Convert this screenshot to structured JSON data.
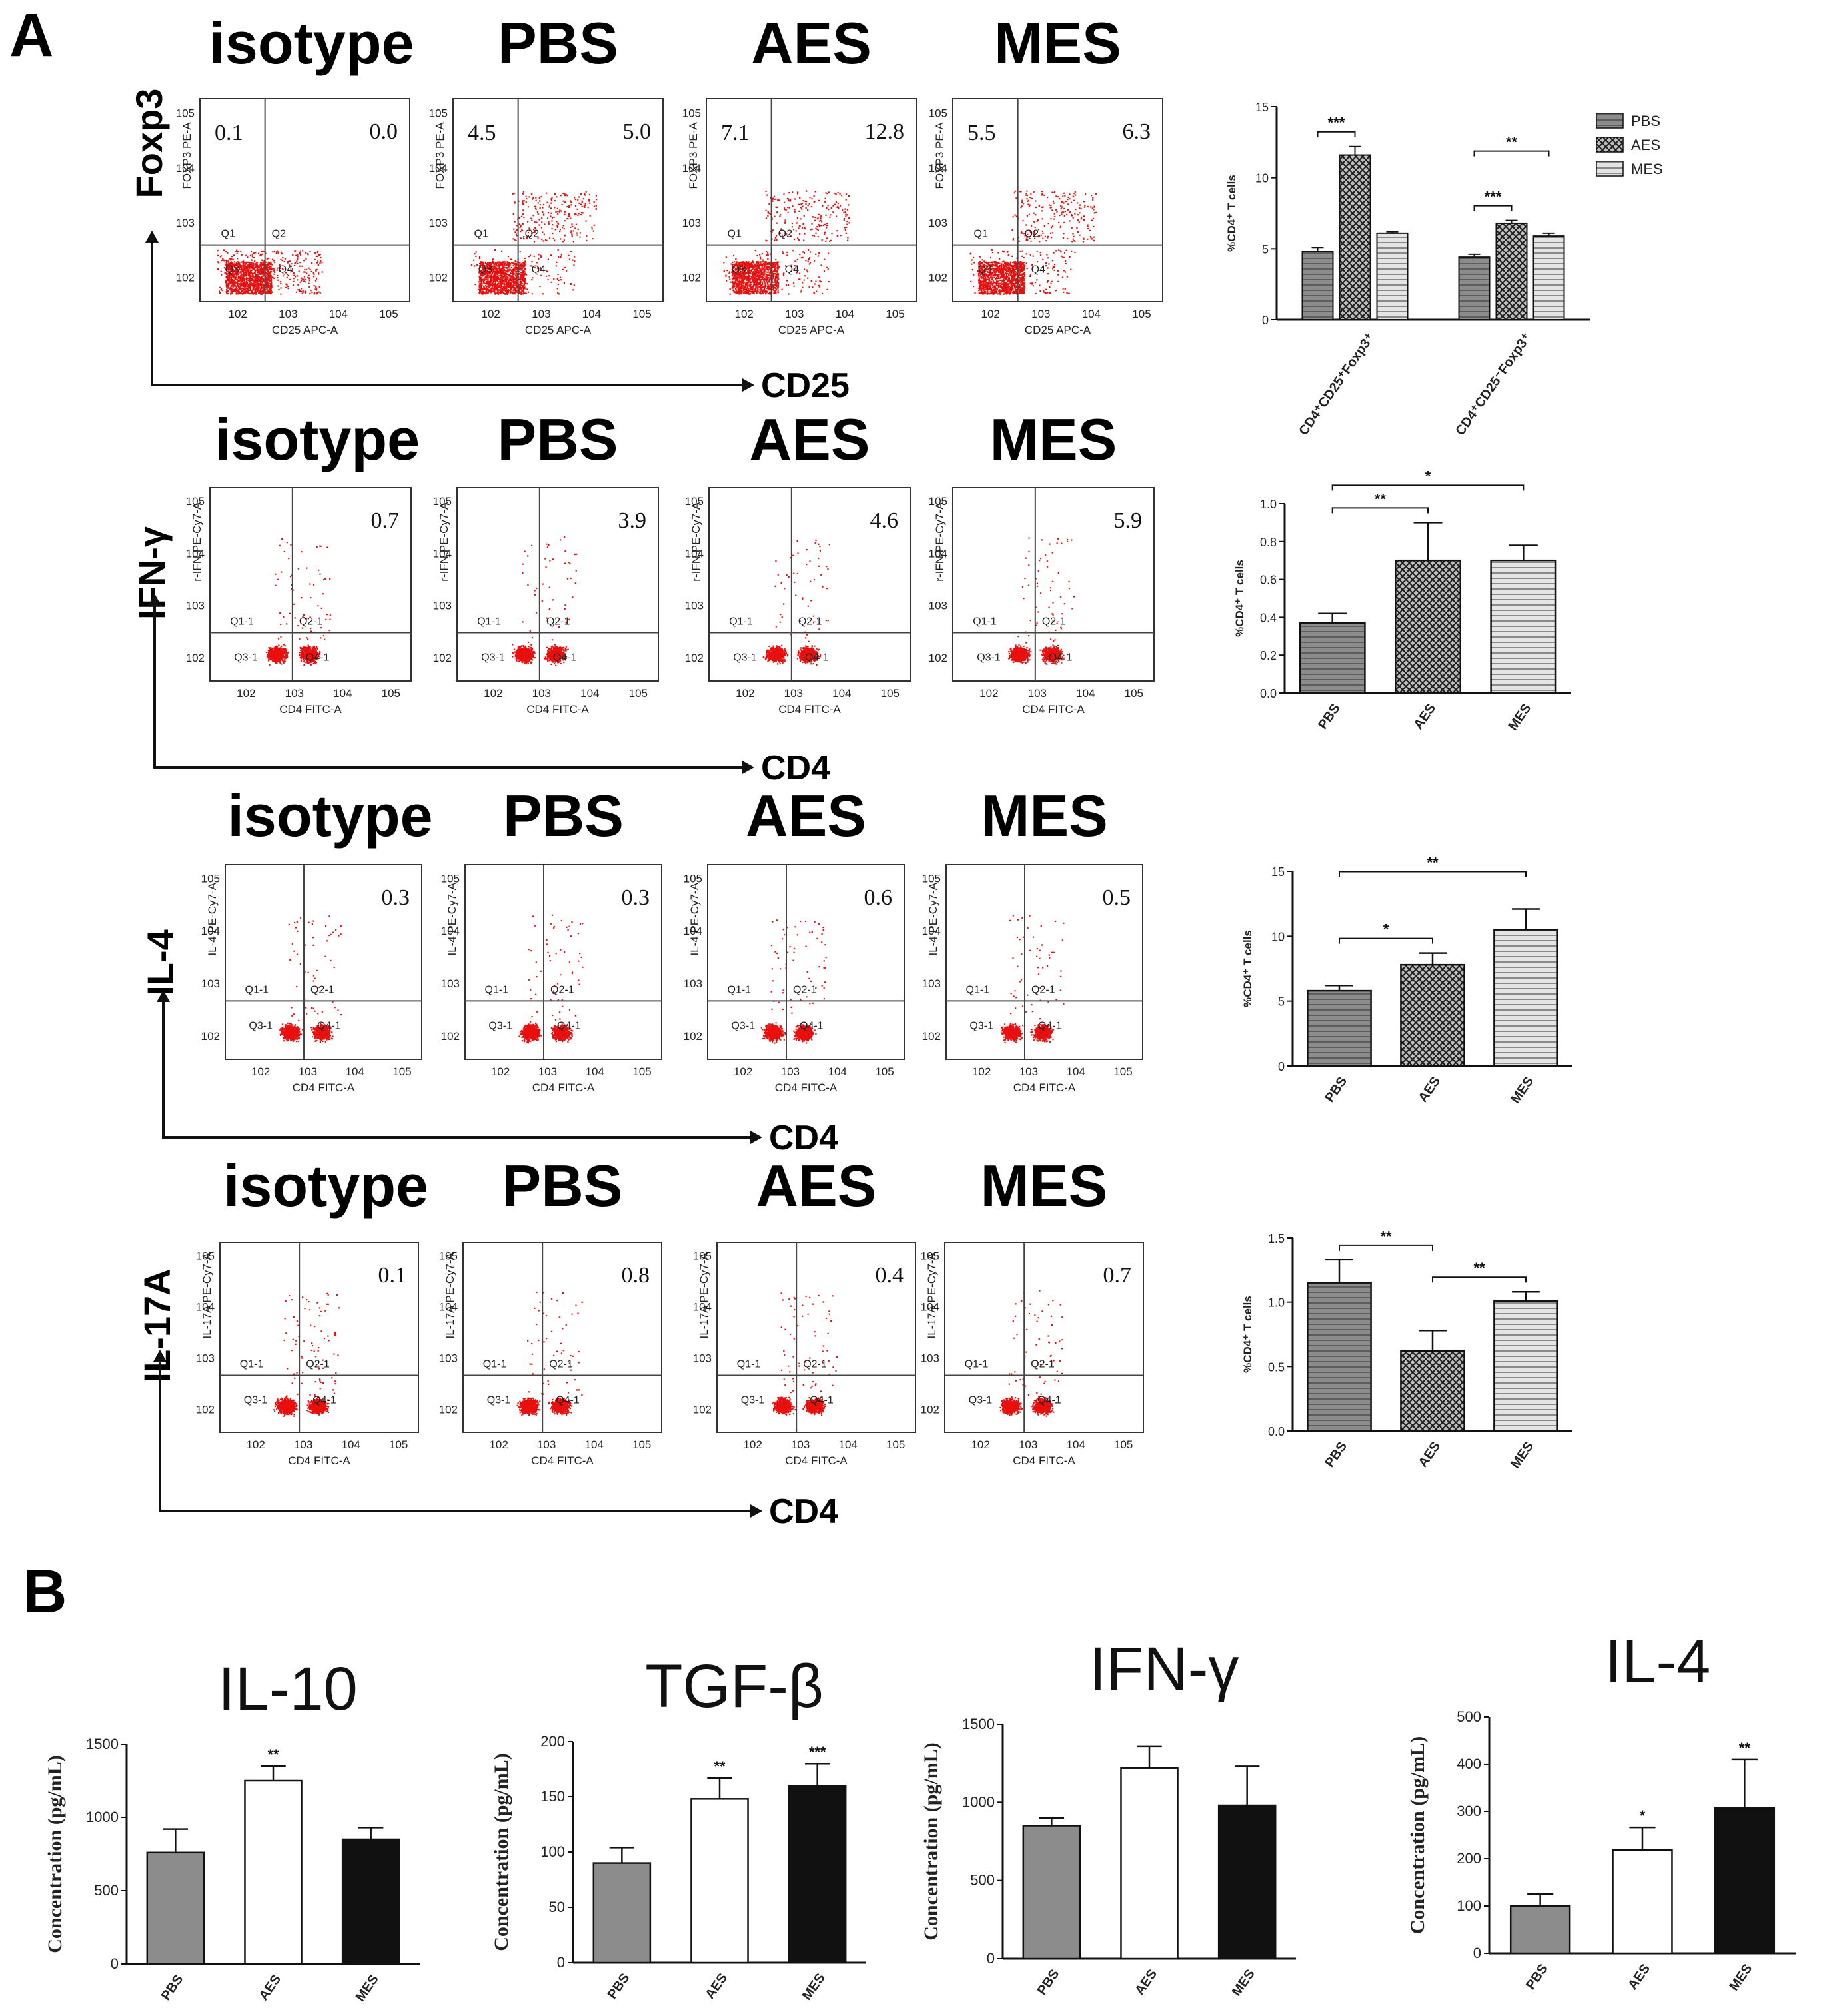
{
  "panel_a_label": "A",
  "panel_b_label": "B",
  "flow_columns": [
    "isotype",
    "PBS",
    "AES",
    "MES"
  ],
  "flow_rows": [
    {
      "marker": "Foxp3",
      "arrow_x_label": "CD25",
      "x_axis_title": "CD25 APC-A",
      "y_axis_title": "FOXP3 PE-A",
      "gate_labels": [
        "Q1",
        "Q2",
        "Q3",
        "Q4"
      ],
      "plots": [
        {
          "left_value": "0.1",
          "right_value": "0.0"
        },
        {
          "left_value": "4.5",
          "right_value": "5.0"
        },
        {
          "left_value": "7.1",
          "right_value": "12.8"
        },
        {
          "left_value": "5.5",
          "right_value": "6.3"
        }
      ]
    },
    {
      "marker": "IFN-γ",
      "arrow_x_label": "CD4",
      "x_axis_title": "CD4 FITC-A",
      "y_axis_title": "r-IFN PE-Cy7-A",
      "gate_labels": [
        "Q1-1",
        "Q2-1",
        "Q3-1",
        "Q4-1"
      ],
      "plots": [
        {
          "right_value": "0.7"
        },
        {
          "right_value": "3.9"
        },
        {
          "right_value": "4.6"
        },
        {
          "right_value": "5.9"
        }
      ]
    },
    {
      "marker": "IL-4",
      "arrow_x_label": "CD4",
      "x_axis_title": "CD4 FITC-A",
      "y_axis_title": "IL-4 PE-Cy7-A",
      "gate_labels": [
        "Q1-1",
        "Q2-1",
        "Q3-1",
        "Q4-1"
      ],
      "plots": [
        {
          "right_value": "0.3"
        },
        {
          "right_value": "0.3"
        },
        {
          "right_value": "0.6"
        },
        {
          "right_value": "0.5"
        }
      ]
    },
    {
      "marker": "IL-17A",
      "arrow_x_label": "CD4",
      "x_axis_title": "CD4 FITC-A",
      "y_axis_title": "IL-17A PE-Cy7-A",
      "gate_labels": [
        "Q1-1",
        "Q2-1",
        "Q3-1",
        "Q4-1"
      ],
      "plots": [
        {
          "right_value": "0.1"
        },
        {
          "right_value": "0.8"
        },
        {
          "right_value": "0.4"
        },
        {
          "right_value": "0.7"
        }
      ]
    }
  ],
  "chart_data": [
    {
      "id": "A1",
      "type": "bar",
      "title": "",
      "ylabel": "%CD4⁺ T cells",
      "ylim": [
        0,
        15
      ],
      "yticks": [
        0,
        5,
        10,
        15
      ],
      "categories": [
        "CD4⁺CD25⁺Foxp3⁺",
        "CD4⁺CD25⁻Foxp3⁺"
      ],
      "series": [
        {
          "name": "PBS",
          "values": [
            4.8,
            4.4
          ],
          "errors": [
            0.3,
            0.2
          ]
        },
        {
          "name": "AES",
          "values": [
            11.6,
            6.8
          ],
          "errors": [
            0.6,
            0.2
          ]
        },
        {
          "name": "MES",
          "values": [
            6.1,
            5.9
          ],
          "errors": [
            0.1,
            0.2
          ]
        }
      ],
      "legend": [
        "PBS",
        "AES",
        "MES"
      ],
      "legend_position": "top-right",
      "significance": [
        {
          "group": 0,
          "from": "PBS",
          "to": "AES",
          "label": "***"
        },
        {
          "group": 1,
          "from": "PBS",
          "to": "AES",
          "label": "***"
        },
        {
          "group": 1,
          "from": "PBS",
          "to": "MES",
          "label": "**"
        }
      ]
    },
    {
      "id": "A2",
      "type": "bar",
      "title": "",
      "ylabel": "%CD4⁺ T cells",
      "ylim": [
        0,
        1.0
      ],
      "yticks": [
        "0.0",
        "0.2",
        "0.4",
        "0.6",
        "0.8",
        "1.0"
      ],
      "categories": [
        "PBS",
        "AES",
        "MES"
      ],
      "values": [
        0.37,
        0.7,
        0.7
      ],
      "errors": [
        0.05,
        0.2,
        0.08
      ],
      "significance": [
        {
          "from": "PBS",
          "to": "AES",
          "label": "**"
        },
        {
          "from": "PBS",
          "to": "MES",
          "label": "*"
        }
      ]
    },
    {
      "id": "A3",
      "type": "bar",
      "title": "",
      "ylabel": "%CD4⁺ T cells",
      "ylim": [
        0,
        15
      ],
      "yticks": [
        0,
        5,
        10,
        15
      ],
      "categories": [
        "PBS",
        "AES",
        "MES"
      ],
      "values": [
        5.8,
        7.8,
        10.5
      ],
      "errors": [
        0.4,
        0.9,
        1.6
      ],
      "significance": [
        {
          "from": "PBS",
          "to": "AES",
          "label": "*"
        },
        {
          "from": "PBS",
          "to": "MES",
          "label": "**"
        }
      ]
    },
    {
      "id": "A4",
      "type": "bar",
      "title": "",
      "ylabel": "%CD4⁺ T cells",
      "ylim": [
        0,
        1.5
      ],
      "yticks": [
        "0.0",
        "0.5",
        "1.0",
        "1.5"
      ],
      "categories": [
        "PBS",
        "AES",
        "MES"
      ],
      "values": [
        1.15,
        0.62,
        1.01
      ],
      "errors": [
        0.18,
        0.16,
        0.07
      ],
      "significance": [
        {
          "from": "PBS",
          "to": "AES",
          "label": "**"
        },
        {
          "from": "AES",
          "to": "MES",
          "label": "**"
        }
      ]
    },
    {
      "id": "B1",
      "type": "bar",
      "title": "IL-10",
      "ylabel": "Concentration (pg/mL)",
      "ylim": [
        0,
        1500
      ],
      "yticks": [
        0,
        500,
        1000,
        1500
      ],
      "categories": [
        "PBS",
        "AES",
        "MES"
      ],
      "values": [
        760,
        1250,
        850
      ],
      "errors": [
        160,
        100,
        80
      ],
      "marks": [
        "",
        "**",
        ""
      ]
    },
    {
      "id": "B2",
      "type": "bar",
      "title": "TGF-β",
      "ylabel": "Concentration (pg/mL)",
      "ylim": [
        0,
        200
      ],
      "yticks": [
        0,
        50,
        100,
        150,
        200
      ],
      "categories": [
        "PBS",
        "AES",
        "MES"
      ],
      "values": [
        90,
        148,
        160
      ],
      "errors": [
        14,
        19,
        20
      ],
      "marks": [
        "",
        "**",
        "***"
      ]
    },
    {
      "id": "B3",
      "type": "bar",
      "title": "IFN-γ",
      "ylabel": "Concentration (pg/mL)",
      "ylim": [
        0,
        1500
      ],
      "yticks": [
        0,
        500,
        1000,
        1500
      ],
      "categories": [
        "PBS",
        "AES",
        "MES"
      ],
      "values": [
        850,
        1220,
        980
      ],
      "errors": [
        50,
        140,
        250
      ],
      "marks": [
        "",
        "",
        ""
      ]
    },
    {
      "id": "B4",
      "type": "bar",
      "title": "IL-4",
      "ylabel": "Concentration (pg/mL)",
      "ylim": [
        0,
        500
      ],
      "yticks": [
        0,
        100,
        200,
        300,
        400,
        500
      ],
      "categories": [
        "PBS",
        "AES",
        "MES"
      ],
      "values": [
        100,
        218,
        308
      ],
      "errors": [
        25,
        48,
        102
      ],
      "marks": [
        "",
        "*",
        "**"
      ]
    }
  ]
}
